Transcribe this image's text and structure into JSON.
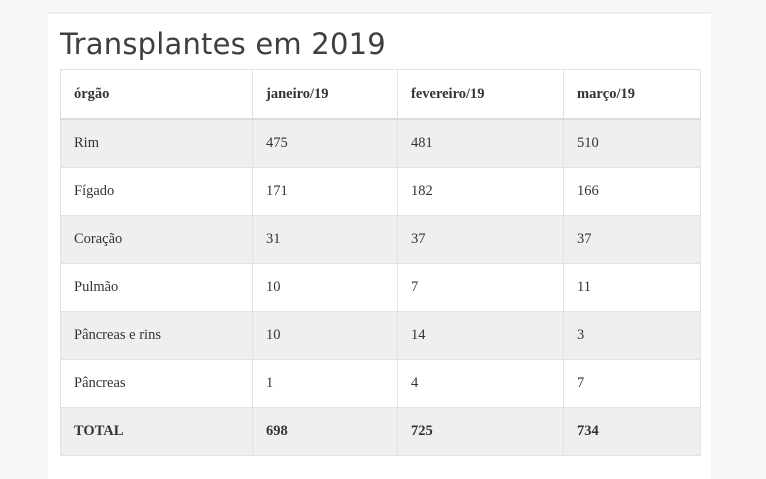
{
  "title": "Transplantes em 2019",
  "table": {
    "headers": [
      "órgão",
      "janeiro/19",
      "fevereiro/19",
      "março/19"
    ],
    "rows": [
      [
        "Rim",
        "475",
        "481",
        "510"
      ],
      [
        "Fígado",
        "171",
        "182",
        "166"
      ],
      [
        "Coração",
        "31",
        "37",
        "37"
      ],
      [
        "Pulmão",
        "10",
        "7",
        "11"
      ],
      [
        "Pâncreas e rins",
        "10",
        "14",
        "3"
      ],
      [
        "Pâncreas",
        "1",
        "4",
        "7"
      ]
    ],
    "total": [
      "TOTAL",
      "698",
      "725",
      "734"
    ]
  }
}
